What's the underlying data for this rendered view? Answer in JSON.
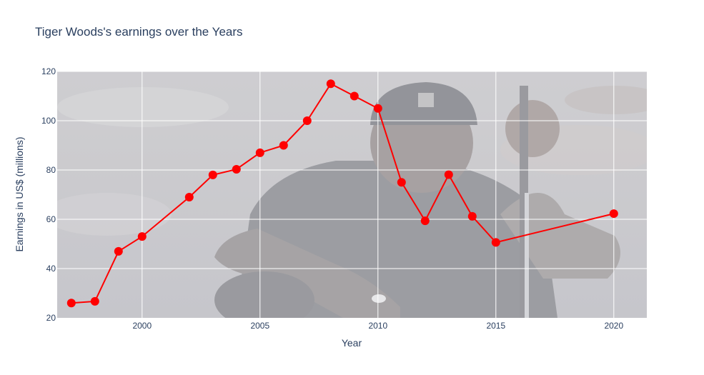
{
  "chart_data": {
    "type": "line",
    "title": "Tiger Woods's earnings over the Years",
    "xlabel": "Year",
    "ylabel": "Earnings in US$ (millions)",
    "xlim": [
      1996.4,
      2021.4
    ],
    "ylim": [
      20,
      120
    ],
    "xticks": [
      2000,
      2005,
      2010,
      2015,
      2020
    ],
    "yticks": [
      20,
      40,
      60,
      80,
      100,
      120
    ],
    "grid": true,
    "background": "photo of Tiger Woods crouching with a golf club, faded",
    "series": [
      {
        "color": "#ff0000",
        "mode": "lines+markers",
        "x": [
          1997,
          1998,
          1999,
          2000,
          2002,
          2003,
          2004,
          2005,
          2006,
          2007,
          2008,
          2009,
          2010,
          2011,
          2012,
          2013,
          2014,
          2015,
          2020
        ],
        "y": [
          26,
          26.7,
          47,
          53,
          69,
          78,
          80.3,
          87,
          90,
          100,
          115,
          110,
          105,
          75,
          59.4,
          78.1,
          61.2,
          50.6,
          62.3
        ]
      }
    ]
  }
}
